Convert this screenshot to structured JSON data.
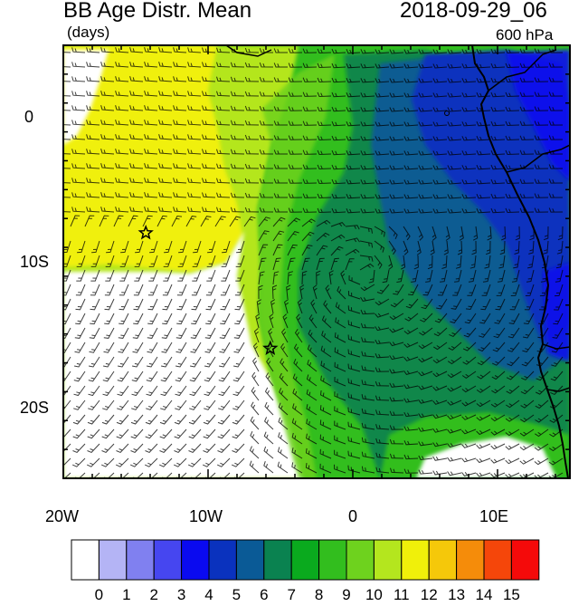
{
  "header": {
    "title": "BB Age Distr. Mean",
    "datetime": "2018-09-29_06",
    "units": "(days)",
    "level": "600 hPa"
  },
  "axes": {
    "lat_labels": [
      {
        "value": 0,
        "label": "0"
      },
      {
        "value": -10,
        "label": "10S"
      },
      {
        "value": -20,
        "label": "20S"
      }
    ],
    "lon_labels": [
      {
        "value": -20,
        "label": "20W"
      },
      {
        "value": -10,
        "label": "10W"
      },
      {
        "value": 0,
        "label": "0"
      },
      {
        "value": 10,
        "label": "10E"
      }
    ],
    "lon_range": [
      -20,
      15
    ],
    "lat_range": [
      -25,
      5
    ]
  },
  "colorbar": {
    "labels": [
      "0",
      "1",
      "2",
      "3",
      "4",
      "5",
      "6",
      "7",
      "8",
      "9",
      "10",
      "11",
      "12",
      "13",
      "14",
      "15"
    ],
    "colors": [
      "#ffffff",
      "#b4b4f5",
      "#8080f0",
      "#4646f0",
      "#0a0af0",
      "#0a32be",
      "#0a5a96",
      "#0a8250",
      "#0aaa1e",
      "#32be1e",
      "#6ed21e",
      "#b4e61e",
      "#f0f00a",
      "#f5c80a",
      "#f58c0a",
      "#f5460a",
      "#f50a0a"
    ]
  },
  "markers": [
    {
      "name": "star",
      "lon": -14.3,
      "lat": -8.0
    },
    {
      "name": "star",
      "lon": -5.7,
      "lat": -16.0
    }
  ]
}
